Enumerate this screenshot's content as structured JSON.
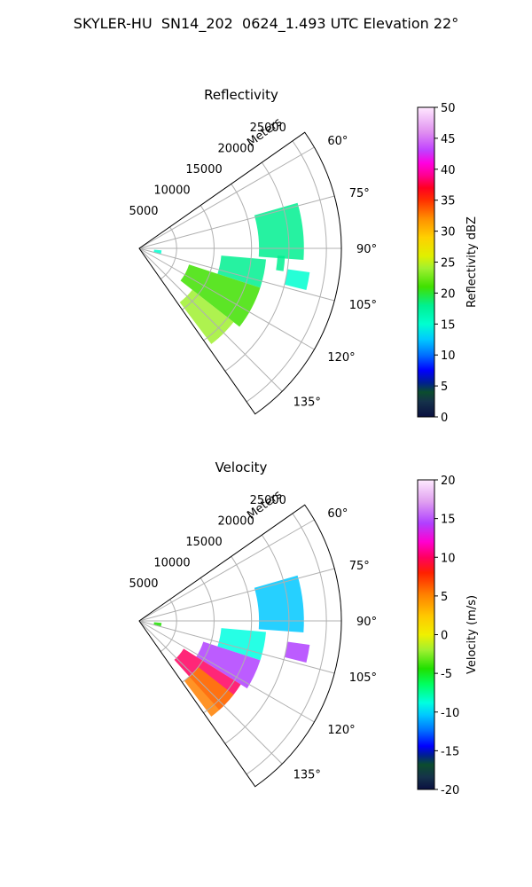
{
  "figure": {
    "title": "SKYLER-HU  SN14_202  0624_1.493 UTC Elevation 22°"
  },
  "chart_data": [
    {
      "type": "heatmap",
      "subtype": "polar-ppi-sector",
      "title": "Reflectivity",
      "r_axis_label": "Meters",
      "r_ticks": [
        5000,
        10000,
        15000,
        20000,
        25000
      ],
      "r_tick_labels": [
        "5000",
        "10000",
        "15000",
        "20000",
        "25000"
      ],
      "r_range": [
        0,
        27000
      ],
      "theta_range_deg": [
        55,
        145
      ],
      "theta_ticks_deg": [
        60,
        75,
        90,
        105,
        120,
        135
      ],
      "theta_tick_labels": [
        "60°",
        "75°",
        "90°",
        "105°",
        "120°",
        "135°"
      ],
      "grid": true,
      "colorbar": {
        "label": "Reflectivity dBZ",
        "range": [
          0,
          50
        ],
        "ticks": [
          "0",
          "5",
          "10",
          "15",
          "20",
          "25",
          "30",
          "35",
          "40",
          "45",
          "50"
        ],
        "position": "right"
      },
      "echoes": [
        {
          "theta_deg": [
            74,
            94
          ],
          "r_m": [
            16000,
            22000
          ],
          "value": 18
        },
        {
          "theta_deg": [
            95,
            108
          ],
          "r_m": [
            11000,
            17000
          ],
          "value": 17
        },
        {
          "theta_deg": [
            108,
            128
          ],
          "r_m": [
            7000,
            17000
          ],
          "value": 20
        },
        {
          "theta_deg": [
            128,
            143
          ],
          "r_m": [
            9000,
            16000
          ],
          "value": 24
        },
        {
          "theta_deg": [
            98,
            104
          ],
          "r_m": [
            20000,
            23000
          ],
          "value": 16
        },
        {
          "theta_deg": [
            93,
            99
          ],
          "r_m": [
            18500,
            19500
          ],
          "value": 18
        },
        {
          "theta_deg": [
            95,
            104
          ],
          "r_m": [
            2000,
            3000
          ],
          "value": 14
        }
      ]
    },
    {
      "type": "heatmap",
      "subtype": "polar-ppi-sector",
      "title": "Velocity",
      "r_axis_label": "Meters",
      "r_ticks": [
        5000,
        10000,
        15000,
        20000,
        25000
      ],
      "r_tick_labels": [
        "5000",
        "10000",
        "15000",
        "20000",
        "25000"
      ],
      "r_range": [
        0,
        27000
      ],
      "theta_range_deg": [
        55,
        145
      ],
      "theta_ticks_deg": [
        60,
        75,
        90,
        105,
        120,
        135
      ],
      "theta_tick_labels": [
        "60°",
        "75°",
        "90°",
        "105°",
        "120°",
        "135°"
      ],
      "grid": true,
      "colorbar": {
        "label": "Velocity (m/s)",
        "range": [
          -20,
          20
        ],
        "ticks": [
          "-20",
          "-15",
          "-10",
          "-5",
          "0",
          "5",
          "10",
          "15",
          "20"
        ],
        "position": "right"
      },
      "echoes": [
        {
          "theta_deg": [
            74,
            94
          ],
          "r_m": [
            16000,
            22000
          ],
          "value": -11
        },
        {
          "theta_deg": [
            95,
            108
          ],
          "r_m": [
            11000,
            17000
          ],
          "value": -9
        },
        {
          "theta_deg": [
            108,
            122
          ],
          "r_m": [
            9000,
            17000
          ],
          "value": 15
        },
        {
          "theta_deg": [
            122,
            138
          ],
          "r_m": [
            7000,
            16000
          ],
          "value": 11
        },
        {
          "theta_deg": [
            128,
            143
          ],
          "r_m": [
            10000,
            16000
          ],
          "value": 4
        },
        {
          "theta_deg": [
            98,
            104
          ],
          "r_m": [
            20000,
            23000
          ],
          "value": 14
        },
        {
          "theta_deg": [
            95,
            104
          ],
          "r_m": [
            2000,
            3000
          ],
          "value": -5
        }
      ]
    }
  ],
  "colors": {
    "grid": "#b0b0b0",
    "axis": "#000000"
  }
}
